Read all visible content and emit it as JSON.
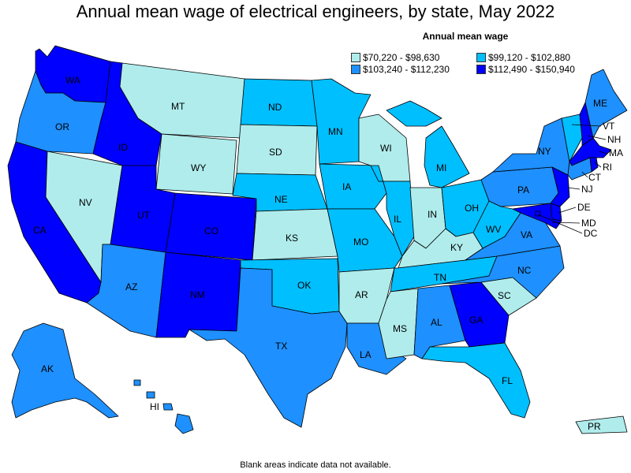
{
  "title": "Annual mean wage of electrical engineers, by state, May 2022",
  "legend": {
    "title": "Annual mean wage",
    "items": [
      {
        "label": "$70,220 - $98,630",
        "color": "#b0ecec"
      },
      {
        "label": "$99,120 - $102,880",
        "color": "#00bfff"
      },
      {
        "label": "$103,240 - $112,230",
        "color": "#1e90ff"
      },
      {
        "label": "$112,490 - $150,940",
        "color": "#0000ff"
      }
    ]
  },
  "footnote": "Blank areas indicate data not available.",
  "states": {
    "WA": {
      "label": "WA",
      "tier": 4
    },
    "OR": {
      "label": "OR",
      "tier": 3
    },
    "CA": {
      "label": "CA",
      "tier": 4
    },
    "NV": {
      "label": "NV",
      "tier": 1
    },
    "ID": {
      "label": "ID",
      "tier": 4
    },
    "MT": {
      "label": "MT",
      "tier": 1
    },
    "WY": {
      "label": "WY",
      "tier": 1
    },
    "UT": {
      "label": "UT",
      "tier": 4
    },
    "CO": {
      "label": "CO",
      "tier": 4
    },
    "AZ": {
      "label": "AZ",
      "tier": 3
    },
    "NM": {
      "label": "NM",
      "tier": 4
    },
    "ND": {
      "label": "ND",
      "tier": 2
    },
    "SD": {
      "label": "SD",
      "tier": 1
    },
    "NE": {
      "label": "NE",
      "tier": 2
    },
    "KS": {
      "label": "KS",
      "tier": 1
    },
    "OK": {
      "label": "OK",
      "tier": 2
    },
    "TX": {
      "label": "TX",
      "tier": 3
    },
    "MN": {
      "label": "MN",
      "tier": 2
    },
    "IA": {
      "label": "IA",
      "tier": 2
    },
    "MO": {
      "label": "MO",
      "tier": 2
    },
    "AR": {
      "label": "AR",
      "tier": 1
    },
    "LA": {
      "label": "LA",
      "tier": 3
    },
    "WI": {
      "label": "WI",
      "tier": 1
    },
    "IL": {
      "label": "IL",
      "tier": 2
    },
    "MI": {
      "label": "MI",
      "tier": 2
    },
    "IN": {
      "label": "IN",
      "tier": 1
    },
    "OH": {
      "label": "OH",
      "tier": 2
    },
    "KY": {
      "label": "KY",
      "tier": 1
    },
    "TN": {
      "label": "TN",
      "tier": 2
    },
    "MS": {
      "label": "MS",
      "tier": 1
    },
    "AL": {
      "label": "AL",
      "tier": 3
    },
    "GA": {
      "label": "GA",
      "tier": 4
    },
    "FL": {
      "label": "FL",
      "tier": 2
    },
    "SC": {
      "label": "SC",
      "tier": 1
    },
    "NC": {
      "label": "NC",
      "tier": 3
    },
    "VA": {
      "label": "VA",
      "tier": 3
    },
    "WV": {
      "label": "WV",
      "tier": 2
    },
    "PA": {
      "label": "PA",
      "tier": 3
    },
    "NY": {
      "label": "NY",
      "tier": 3
    },
    "ME": {
      "label": "ME",
      "tier": 3
    },
    "VT": {
      "label": "VT",
      "tier": 2
    },
    "NH": {
      "label": "NH",
      "tier": 4
    },
    "MA": {
      "label": "MA",
      "tier": 4
    },
    "RI": {
      "label": "RI",
      "tier": 4
    },
    "CT": {
      "label": "CT",
      "tier": 3
    },
    "NJ": {
      "label": "NJ",
      "tier": 4
    },
    "DE": {
      "label": "DE",
      "tier": 4
    },
    "MD": {
      "label": "MD",
      "tier": 4
    },
    "DC": {
      "label": "DC",
      "tier": 4
    },
    "AK": {
      "label": "AK",
      "tier": 3
    },
    "HI": {
      "label": "HI",
      "tier": 3
    },
    "PR": {
      "label": "PR",
      "tier": 1
    }
  }
}
